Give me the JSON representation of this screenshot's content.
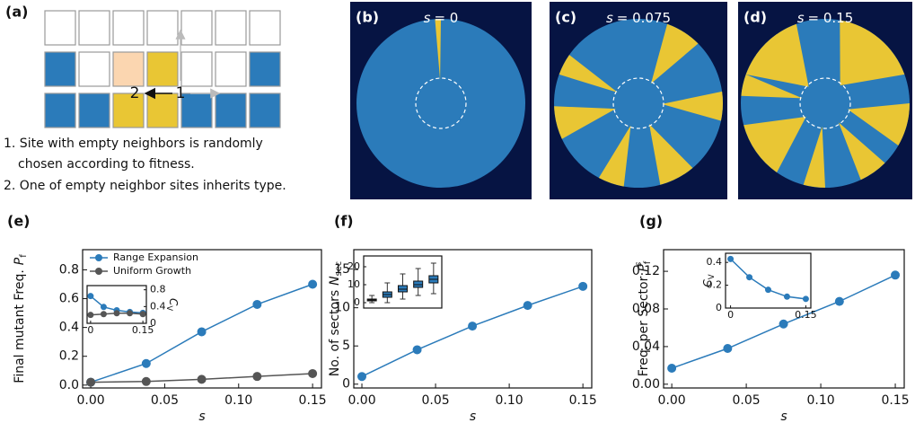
{
  "panel_a": {
    "label": "(a)",
    "cells": [
      "2",
      "1"
    ],
    "steps": [
      "1. Site with empty neighbors is randomly",
      "chosen according to fitness.",
      "2. One of empty neighbor sites inherits type."
    ]
  },
  "simulations": [
    {
      "label": "(b)",
      "symbol": "s",
      "title": "= 0"
    },
    {
      "label": "(c)",
      "symbol": "s",
      "title": "= 0.075"
    },
    {
      "label": "(d)",
      "symbol": "s",
      "title": "= 0.15"
    }
  ],
  "chart_data": [
    {
      "type": "line",
      "label": "(e)",
      "xlabel": "s",
      "ylabel": "Final mutant Freq.",
      "ylabel_symbol": "P",
      "ylabel_sub": "f",
      "x": [
        0,
        0.0375,
        0.075,
        0.1125,
        0.15
      ],
      "xlim": [
        -0.0055,
        0.156
      ],
      "ylim": [
        -0.02,
        0.94
      ],
      "xticks": [
        {
          "value": 0,
          "label": "0.00"
        },
        0.05,
        {
          "value": 0.1,
          "label": "0.10"
        },
        0.15
      ],
      "yticks": [
        {
          "value": 0,
          "label": "0.0"
        },
        0.2,
        0.4,
        0.6,
        0.8
      ],
      "legend": "upper left",
      "series": [
        {
          "name": "Range Expansion",
          "color": "#2b7bba",
          "values": [
            0.02,
            0.15,
            0.37,
            0.56,
            0.7
          ]
        },
        {
          "name": "Uniform Growth",
          "color": "#555555",
          "values": [
            0.02,
            0.025,
            0.04,
            0.06,
            0.08
          ]
        }
      ],
      "inset": {
        "type": "line",
        "y_side": "right",
        "ylabel_symbol": "C",
        "ylabel_sub": "V",
        "xlim": [
          -0.01,
          0.16
        ],
        "ylim": [
          0,
          0.9
        ],
        "xticks": [
          0,
          0.15
        ],
        "yticks": [
          0,
          0.4,
          0.8
        ],
        "series": [
          {
            "color": "#2b7bba",
            "values": [
              0.65,
              0.39,
              0.31,
              0.27,
              0.25
            ]
          },
          {
            "color": "#555555",
            "values": [
              0.2,
              0.22,
              0.24,
              0.24,
              0.22
            ]
          }
        ]
      }
    },
    {
      "type": "line",
      "label": "(f)",
      "xlabel": "s",
      "ylabel": "No. of sectors",
      "ylabel_symbol": "N",
      "ylabel_sub": "sec",
      "x": [
        0,
        0.0375,
        0.075,
        0.1125,
        0.15
      ],
      "xlim": [
        -0.0055,
        0.156
      ],
      "ylim": [
        -0.5,
        17.6
      ],
      "xticks": [
        {
          "value": 0,
          "label": "0.00"
        },
        0.05,
        {
          "value": 0.1,
          "label": "0.10"
        },
        0.15
      ],
      "yticks": [
        0,
        5,
        10,
        15
      ],
      "series": [
        {
          "color": "#2b7bba",
          "values": [
            1,
            4.5,
            7.6,
            10.3,
            12.8
          ]
        }
      ],
      "inset": {
        "type": "box",
        "y_side": "left",
        "xlim": [
          -0.02,
          0.17
        ],
        "ylim": [
          -3,
          26
        ],
        "yticks": [
          0,
          10,
          20
        ],
        "color": "#2b7bba",
        "boxes": [
          {
            "min": 0,
            "q1": 1,
            "median": 1.5,
            "q3": 2,
            "max": 4
          },
          {
            "min": 0,
            "q1": 3,
            "median": 4.5,
            "q3": 6,
            "max": 11
          },
          {
            "min": 2,
            "q1": 6,
            "median": 7.5,
            "q3": 9.5,
            "max": 16
          },
          {
            "min": 4,
            "q1": 8.5,
            "median": 10,
            "q3": 12,
            "max": 19
          },
          {
            "min": 5,
            "q1": 11,
            "median": 13,
            "q3": 15,
            "max": 22
          }
        ]
      }
    },
    {
      "type": "line",
      "label": "(g)",
      "xlabel": "s",
      "ylabel": "Freq. per Sector",
      "ylabel_symbol": "P",
      "ylabel_sub": "f",
      "ylabel_sup": "s",
      "x": [
        0,
        0.0375,
        0.075,
        0.1125,
        0.15
      ],
      "xlim": [
        -0.0055,
        0.156
      ],
      "ylim": [
        -0.004,
        0.143
      ],
      "xticks": [
        {
          "value": 0,
          "label": "0.00"
        },
        0.05,
        {
          "value": 0.1,
          "label": "0.10"
        },
        0.15
      ],
      "yticks": [
        {
          "value": 0,
          "label": "0.00"
        },
        0.04,
        0.08,
        0.12
      ],
      "series": [
        {
          "color": "#2b7bba",
          "values": [
            0.017,
            0.038,
            0.064,
            0.088,
            0.116
          ]
        }
      ],
      "inset": {
        "type": "line",
        "y_side": "left",
        "ylabel_symbol": "C",
        "ylabel_sub": "V",
        "xlim": [
          -0.01,
          0.16
        ],
        "ylim": [
          0,
          0.48
        ],
        "xticks": [
          0,
          0.15
        ],
        "yticks": [
          0,
          0.2,
          0.4
        ],
        "series": [
          {
            "color": "#2b7bba",
            "values": [
              0.43,
              0.27,
              0.16,
              0.1,
              0.08
            ]
          }
        ]
      }
    }
  ]
}
